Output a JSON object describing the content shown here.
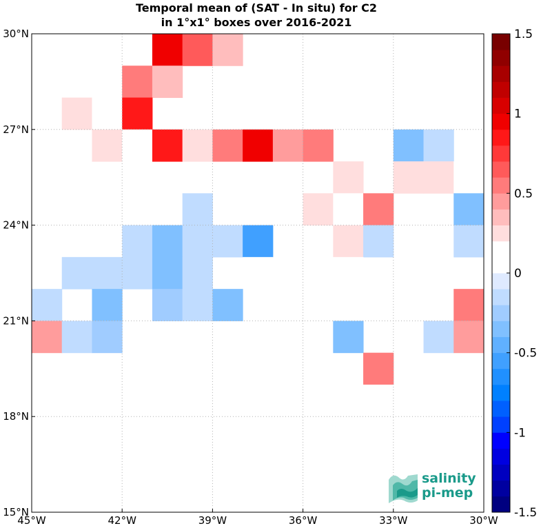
{
  "chart_data": {
    "type": "heatmap",
    "title_lines": [
      "Temporal mean of (SAT - In situ) for C2",
      "in 1°x1° boxes over 2016-2021"
    ],
    "x_ticks": [
      "45°W",
      "42°W",
      "39°W",
      "36°W",
      "33°W",
      "30°W"
    ],
    "x_tick_values": [
      -45,
      -42,
      -39,
      -36,
      -33,
      -30
    ],
    "y_ticks": [
      "30°N",
      "27°N",
      "24°N",
      "21°N",
      "18°N",
      "15°N"
    ],
    "y_tick_values": [
      30,
      27,
      24,
      21,
      18,
      15
    ],
    "xlim": [
      -45,
      -30
    ],
    "ylim": [
      15,
      30
    ],
    "grid": true,
    "cell_size_deg": 1,
    "colorbar": {
      "range": [
        -1.5,
        1.5
      ],
      "step": 0.1,
      "ticks": [
        -1.5,
        -1,
        -0.5,
        0,
        0.5,
        1,
        1.5
      ],
      "tick_labels": [
        "-1.5",
        "-1",
        "-0.5",
        "0",
        "0.5",
        "1",
        "1.5"
      ],
      "position": "right"
    },
    "cells": [
      {
        "lon": -41,
        "lat": 30,
        "value": 0.95
      },
      {
        "lon": -40,
        "lat": 30,
        "value": 0.65
      },
      {
        "lon": -39,
        "lat": 30,
        "value": 0.35
      },
      {
        "lon": -42,
        "lat": 29,
        "value": 0.55
      },
      {
        "lon": -41,
        "lat": 29,
        "value": 0.35
      },
      {
        "lon": -44,
        "lat": 28,
        "value": 0.25
      },
      {
        "lon": -43,
        "lat": 28,
        "value": 0.15
      },
      {
        "lon": -42,
        "lat": 28,
        "value": 0.85
      },
      {
        "lon": -45,
        "lat": 27,
        "value": 0.15
      },
      {
        "lon": -43,
        "lat": 27,
        "value": 0.25
      },
      {
        "lon": -42,
        "lat": 27,
        "value": 0.15
      },
      {
        "lon": -41,
        "lat": 27,
        "value": 0.85
      },
      {
        "lon": -40,
        "lat": 27,
        "value": 0.25
      },
      {
        "lon": -39,
        "lat": 27,
        "value": 0.55
      },
      {
        "lon": -38,
        "lat": 27,
        "value": 0.95
      },
      {
        "lon": -37,
        "lat": 27,
        "value": 0.45
      },
      {
        "lon": -36,
        "lat": 27,
        "value": 0.55
      },
      {
        "lon": -33,
        "lat": 27,
        "value": -0.3
      },
      {
        "lon": -32,
        "lat": 27,
        "value": -0.2
      },
      {
        "lon": -45,
        "lat": 26,
        "value": 0.15
      },
      {
        "lon": -35,
        "lat": 26,
        "value": 0.25
      },
      {
        "lon": -33,
        "lat": 26,
        "value": 0.25
      },
      {
        "lon": -32,
        "lat": 26,
        "value": 0.25
      },
      {
        "lon": -31,
        "lat": 26,
        "value": 0.15
      },
      {
        "lon": -40,
        "lat": 25,
        "value": -0.2
      },
      {
        "lon": -38,
        "lat": 25,
        "value": 0.15
      },
      {
        "lon": -37,
        "lat": 25,
        "value": 0.15
      },
      {
        "lon": -36,
        "lat": 25,
        "value": 0.25
      },
      {
        "lon": -35,
        "lat": 25,
        "value": 0.15
      },
      {
        "lon": -34,
        "lat": 25,
        "value": 0.55
      },
      {
        "lon": -31,
        "lat": 25,
        "value": -0.3
      },
      {
        "lon": -42,
        "lat": 24,
        "value": -0.15
      },
      {
        "lon": -41,
        "lat": 24,
        "value": -0.3
      },
      {
        "lon": -40,
        "lat": 24,
        "value": -0.15
      },
      {
        "lon": -39,
        "lat": 24,
        "value": -0.2
      },
      {
        "lon": -38,
        "lat": 24,
        "value": -0.55
      },
      {
        "lon": -35,
        "lat": 24,
        "value": 0.25
      },
      {
        "lon": -34,
        "lat": 24,
        "value": -0.15
      },
      {
        "lon": -31,
        "lat": 24,
        "value": -0.15
      },
      {
        "lon": -45,
        "lat": 23,
        "value": 0.15
      },
      {
        "lon": -44,
        "lat": 23,
        "value": -0.15
      },
      {
        "lon": -43,
        "lat": 23,
        "value": -0.15
      },
      {
        "lon": -42,
        "lat": 23,
        "value": -0.15
      },
      {
        "lon": -41,
        "lat": 23,
        "value": -0.3
      },
      {
        "lon": -40,
        "lat": 23,
        "value": -0.15
      },
      {
        "lon": -38,
        "lat": 23,
        "value": 0.15
      },
      {
        "lon": -35,
        "lat": 23,
        "value": 0.15
      },
      {
        "lon": -45,
        "lat": 22,
        "value": -0.15
      },
      {
        "lon": -43,
        "lat": 22,
        "value": -0.35
      },
      {
        "lon": -41,
        "lat": 22,
        "value": -0.25
      },
      {
        "lon": -40,
        "lat": 22,
        "value": -0.15
      },
      {
        "lon": -39,
        "lat": 22,
        "value": -0.35
      },
      {
        "lon": -31,
        "lat": 22,
        "value": 0.55
      },
      {
        "lon": -45,
        "lat": 21,
        "value": 0.45
      },
      {
        "lon": -44,
        "lat": 21,
        "value": -0.15
      },
      {
        "lon": -43,
        "lat": 21,
        "value": -0.25
      },
      {
        "lon": -35,
        "lat": 21,
        "value": -0.35
      },
      {
        "lon": -32,
        "lat": 21,
        "value": -0.15
      },
      {
        "lon": -31,
        "lat": 21,
        "value": 0.45
      },
      {
        "lon": -34,
        "lat": 20,
        "value": 0.55
      },
      {
        "lon": -35,
        "lat": 19,
        "value": 0.15
      },
      {
        "lon": -34,
        "lat": 19,
        "value": 0.15
      },
      {
        "lon": -31,
        "lat": 19,
        "value": 0.15
      }
    ]
  },
  "logo": {
    "line1": "salinity",
    "line2": "pi-mep"
  },
  "colors": {
    "grid": "#b0b0b0",
    "logo_teal": "#1a9a8a",
    "colormap": [
      "#000080",
      "#0000a0",
      "#0000c0",
      "#0000e0",
      "#0000ff",
      "#0040ff",
      "#0060ff",
      "#0080ff",
      "#2090ff",
      "#40a0ff",
      "#60b0ff",
      "#80c0ff",
      "#a0ccff",
      "#c0dcff",
      "#dfeaff",
      "#ffffff",
      "#ffffff",
      "#ffdede",
      "#ffbdbd",
      "#ff9c9c",
      "#ff7b7b",
      "#ff5a5a",
      "#ff3939",
      "#ff1818",
      "#f00000",
      "#d80000",
      "#c00000",
      "#a80000",
      "#900000",
      "#780000"
    ]
  }
}
